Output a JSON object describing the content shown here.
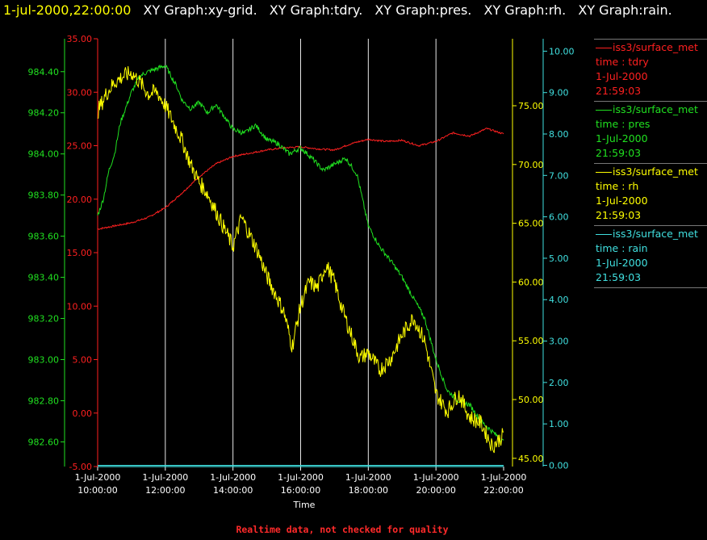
{
  "header": {
    "datetime": "1-jul-2000,22:00:00",
    "graph_titles": [
      "XY Graph:xy-grid.",
      "XY Graph:tdry.",
      "XY Graph:pres.",
      "XY Graph:rh.",
      "XY Graph:rain."
    ]
  },
  "colors": {
    "background": "#000000",
    "tdry": "#ff2020",
    "pres": "#20e020",
    "rh": "#ffff00",
    "rain": "#40e0e0",
    "grid": "#e8e8e8",
    "axis_text": "#ffffff"
  },
  "legend": [
    {
      "source": "iss3/surface_met",
      "field": "time : tdry",
      "date": "1-Jul-2000",
      "time": "21:59:03",
      "color": "#ff2020"
    },
    {
      "source": "iss3/surface_met",
      "field": "time : pres",
      "date": "1-Jul-2000",
      "time": "21:59:03",
      "color": "#20e020"
    },
    {
      "source": "iss3/surface_met",
      "field": "time : rh",
      "date": "1-Jul-2000",
      "time": "21:59:03",
      "color": "#ffff00"
    },
    {
      "source": "iss3/surface_met",
      "field": "time : rain",
      "date": "1-Jul-2000",
      "time": "21:59:03",
      "color": "#40e0e0"
    }
  ],
  "footer": "Realtime data, not checked for quality",
  "chart_data": {
    "type": "line",
    "xlabel": "Time",
    "x_ticks": [
      {
        "date": "1-Jul-2000",
        "time": "10:00:00"
      },
      {
        "date": "1-Jul-2000",
        "time": "12:00:00"
      },
      {
        "date": "1-Jul-2000",
        "time": "14:00:00"
      },
      {
        "date": "1-Jul-2000",
        "time": "16:00:00"
      },
      {
        "date": "1-Jul-2000",
        "time": "18:00:00"
      },
      {
        "date": "1-Jul-2000",
        "time": "20:00:00"
      },
      {
        "date": "1-Jul-2000",
        "time": "22:00:00"
      }
    ],
    "xlim": [
      "1-Jul-2000 10:00:00",
      "1-Jul-2000 22:00:00"
    ],
    "grid": "vertical",
    "axes": {
      "tdry": {
        "ylim": [
          -5,
          35
        ],
        "ticks": [
          "-5.00",
          "0.00",
          "5.00",
          "10.00",
          "15.00",
          "20.00",
          "25.00",
          "30.00",
          "35.00"
        ],
        "side": "left-inner"
      },
      "pres": {
        "ylim": [
          982.48,
          984.56
        ],
        "ticks": [
          "982.60",
          "982.80",
          "983.00",
          "983.20",
          "983.40",
          "983.60",
          "983.80",
          "984.00",
          "984.20",
          "984.40"
        ],
        "side": "left-outer"
      },
      "rh": {
        "ylim": [
          44.3,
          80.7
        ],
        "ticks": [
          "45.00",
          "50.00",
          "55.00",
          "60.00",
          "65.00",
          "70.00",
          "75.00"
        ],
        "side": "right-inner"
      },
      "rain": {
        "ylim": [
          -0.03,
          10.3
        ],
        "ticks": [
          "0.00",
          "1.00",
          "2.00",
          "3.00",
          "4.00",
          "5.00",
          "6.00",
          "7.00",
          "8.00",
          "9.00",
          "10.00"
        ],
        "side": "right-outer"
      }
    },
    "series": [
      {
        "key": "tdry",
        "time": [
          "10:00",
          "10:30",
          "11:00",
          "11:30",
          "12:00",
          "12:30",
          "13:00",
          "13:30",
          "14:00",
          "14:30",
          "15:00",
          "15:30",
          "16:00",
          "16:30",
          "17:00",
          "17:30",
          "18:00",
          "18:30",
          "19:00",
          "19:30",
          "20:00",
          "20:30",
          "21:00",
          "21:30",
          "22:00"
        ],
        "values": [
          17.2,
          17.5,
          17.8,
          18.3,
          19.2,
          20.6,
          22.1,
          23.3,
          24.0,
          24.3,
          24.6,
          24.8,
          24.9,
          24.7,
          24.6,
          25.2,
          25.6,
          25.4,
          25.5,
          25.0,
          25.4,
          26.2,
          25.9,
          26.6,
          26.1
        ]
      },
      {
        "key": "pres",
        "time": [
          "10:00",
          "10:10",
          "10:20",
          "10:30",
          "10:40",
          "11:00",
          "11:15",
          "11:30",
          "12:00",
          "12:20",
          "12:30",
          "12:45",
          "13:00",
          "13:15",
          "13:30",
          "13:45",
          "14:00",
          "14:20",
          "14:40",
          "15:00",
          "15:20",
          "15:40",
          "16:00",
          "16:20",
          "16:40",
          "17:00",
          "17:20",
          "17:40",
          "18:00",
          "18:20",
          "18:40",
          "19:00",
          "19:20",
          "19:40",
          "20:00",
          "20:20",
          "20:40",
          "21:00",
          "21:20",
          "21:40",
          "22:00"
        ],
        "values": [
          983.7,
          983.78,
          983.92,
          984.0,
          984.15,
          984.3,
          984.38,
          984.4,
          984.43,
          984.33,
          984.26,
          984.22,
          984.25,
          984.2,
          984.24,
          984.18,
          984.12,
          984.1,
          984.14,
          984.07,
          984.05,
          984.0,
          984.03,
          983.98,
          983.92,
          983.95,
          983.98,
          983.9,
          983.65,
          983.55,
          983.48,
          983.4,
          983.3,
          983.2,
          983.0,
          982.85,
          982.8,
          982.78,
          982.7,
          982.65,
          982.6
        ]
      },
      {
        "key": "rh",
        "time": [
          "10:00",
          "10:15",
          "10:30",
          "10:45",
          "11:00",
          "11:15",
          "11:30",
          "11:45",
          "12:00",
          "12:15",
          "12:30",
          "12:45",
          "13:00",
          "13:15",
          "13:30",
          "13:45",
          "14:00",
          "14:15",
          "14:30",
          "14:45",
          "15:00",
          "15:15",
          "15:30",
          "15:45",
          "16:00",
          "16:15",
          "16:30",
          "16:45",
          "17:00",
          "17:15",
          "17:30",
          "17:45",
          "18:00",
          "18:20",
          "18:40",
          "19:00",
          "19:20",
          "19:40",
          "20:00",
          "20:20",
          "20:40",
          "21:00",
          "21:20",
          "21:40",
          "22:00"
        ],
        "values": [
          74.5,
          76.0,
          77.0,
          77.5,
          77.8,
          77.0,
          76.0,
          76.2,
          75.0,
          73.5,
          72.0,
          70.0,
          68.5,
          67.5,
          66.0,
          64.5,
          63.0,
          65.5,
          64.0,
          62.5,
          60.5,
          59.0,
          57.5,
          54.5,
          58.0,
          60.0,
          59.5,
          61.5,
          60.0,
          57.5,
          55.5,
          53.5,
          54.0,
          52.5,
          53.5,
          55.5,
          57.0,
          55.0,
          50.5,
          49.0,
          50.5,
          48.5,
          48.0,
          46.0,
          47.0
        ]
      },
      {
        "key": "rain",
        "time": [
          "10:00",
          "22:00"
        ],
        "values": [
          0.0,
          0.0
        ]
      }
    ]
  }
}
